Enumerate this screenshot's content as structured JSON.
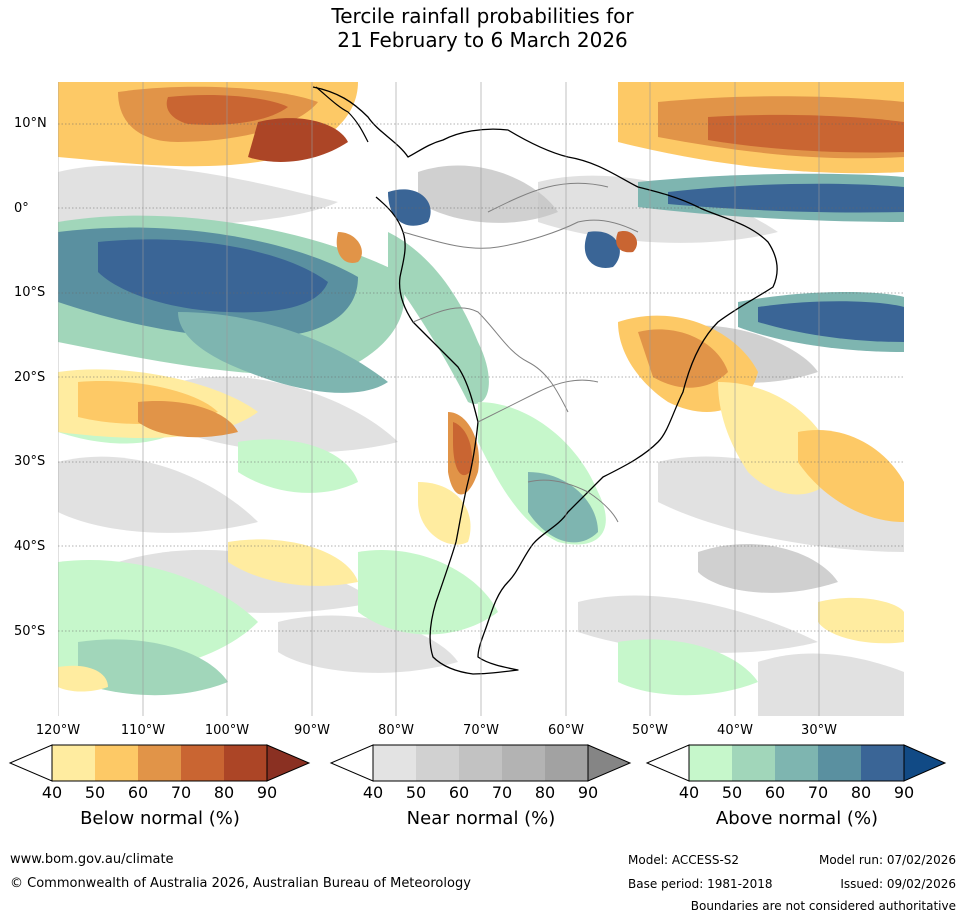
{
  "title_line1": "Tercile rainfall probabilities for",
  "title_line2": "21 February to 6 March 2026",
  "lat_labels": [
    "10°N",
    "0°",
    "10°S",
    "20°S",
    "30°S",
    "40°S",
    "50°S"
  ],
  "lon_labels": [
    "120°W",
    "110°W",
    "100°W",
    "90°W",
    "80°W",
    "70°W",
    "60°W",
    "50°W",
    "40°W",
    "30°W"
  ],
  "colorbars": [
    {
      "label": "Below normal (%)",
      "ticks": [
        "40",
        "50",
        "60",
        "70",
        "80",
        "90"
      ],
      "colors": [
        "#ffeca0",
        "#fdc966",
        "#e19448",
        "#c96532",
        "#ac4526",
        "#8a3022"
      ]
    },
    {
      "label": "Near normal (%)",
      "ticks": [
        "40",
        "50",
        "60",
        "70",
        "80",
        "90"
      ],
      "colors": [
        "#e3e3e3",
        "#d1d1d1",
        "#c2c2c2",
        "#b3b3b3",
        "#a2a2a2",
        "#858585"
      ]
    },
    {
      "label": "Above normal (%)",
      "ticks": [
        "40",
        "50",
        "60",
        "70",
        "80",
        "90"
      ],
      "colors": [
        "#c6f7cb",
        "#a1d6ba",
        "#7eb5b0",
        "#5a90a0",
        "#3a6596",
        "#114a85"
      ]
    }
  ],
  "footer": {
    "url": "www.bom.gov.au/climate",
    "copyright": "© Commonwealth of Australia 2026, Australian Bureau of Meteorology",
    "model": "Model: ACCESS-S2",
    "base_period": "Base period: 1981-2018",
    "model_run": "Model run: 07/02/2026",
    "issued": "Issued: 09/02/2026",
    "disclaimer": "Boundaries are not considered authoritative"
  }
}
